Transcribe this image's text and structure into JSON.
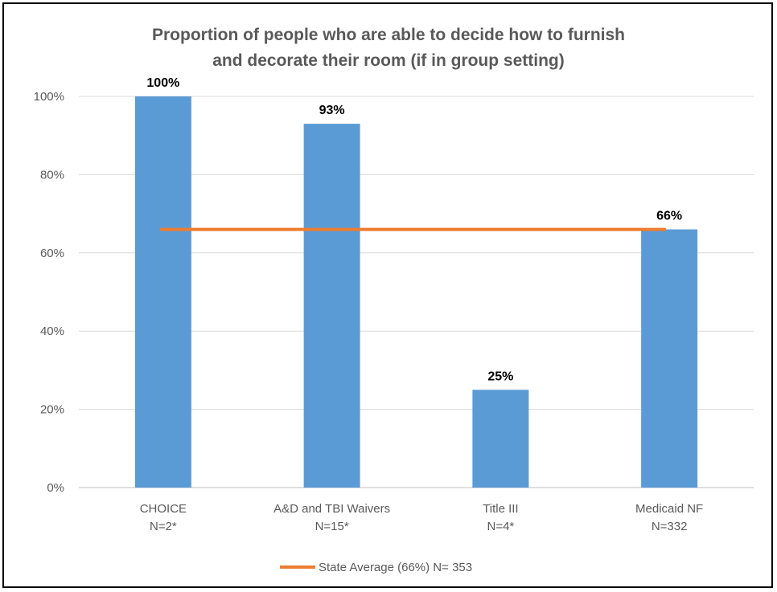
{
  "chart_data": {
    "type": "bar",
    "title_lines": [
      "Proportion of people who are able to decide how to furnish",
      "and decorate their room (if in group setting)"
    ],
    "categories": [
      [
        "CHOICE",
        "N=2*"
      ],
      [
        "A&D and TBI Waivers",
        "N=15*"
      ],
      [
        "Title III",
        "N=4*"
      ],
      [
        "Medicaid NF",
        "N=332"
      ]
    ],
    "values": [
      100,
      93,
      25,
      66
    ],
    "data_labels": [
      "100%",
      "93%",
      "25%",
      "66%"
    ],
    "y_ticks": [
      0,
      20,
      40,
      60,
      80,
      100
    ],
    "y_tick_labels": [
      "0%",
      "20%",
      "40%",
      "60%",
      "80%",
      "100%"
    ],
    "ylim": [
      0,
      100
    ],
    "grid": true,
    "reference_line": {
      "value": 66,
      "label": "State Average (66%) N= 353",
      "color": "#ED7D31"
    },
    "bar_color": "#5B9BD5",
    "legend_position": "bottom"
  }
}
